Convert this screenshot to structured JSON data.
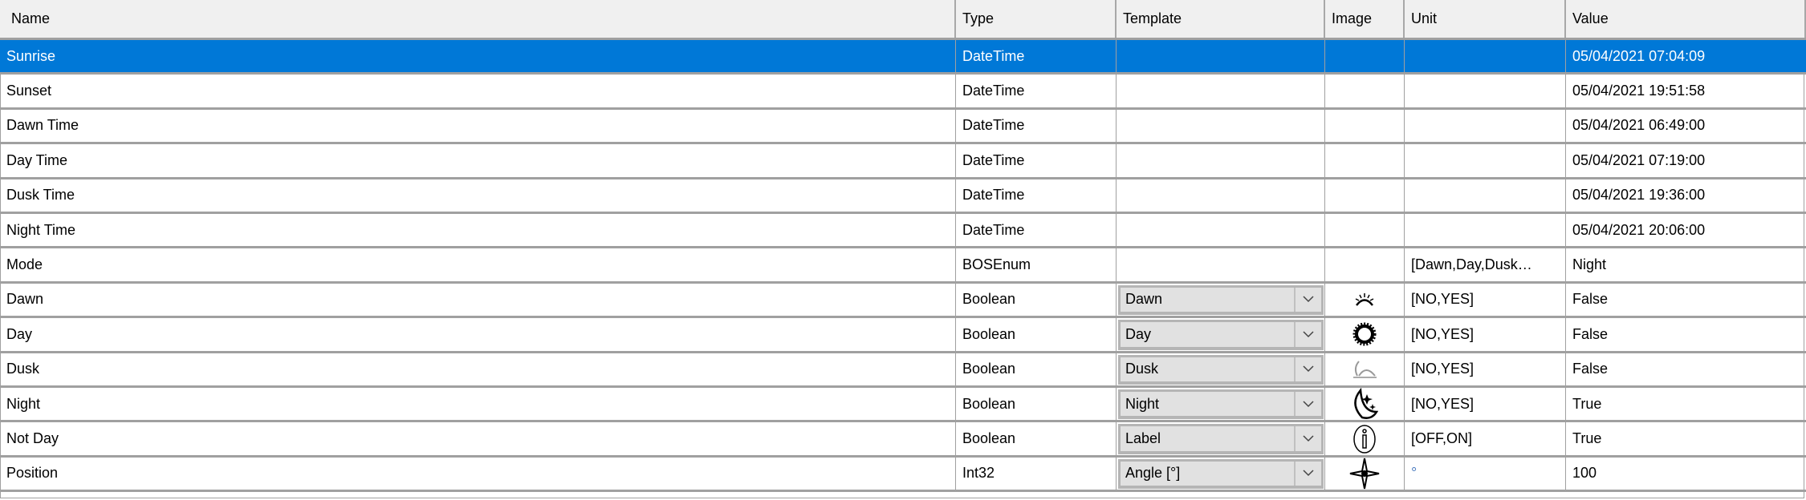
{
  "columns": [
    "Name",
    "Type",
    "Template",
    "Image",
    "Unit",
    "Value"
  ],
  "colors": {
    "selection": "#0078d7",
    "header_bg": "#f0f0f0",
    "grid": "#a0a0a0",
    "dropdown_bg": "#e1e1e1"
  },
  "rows": [
    {
      "name": "Sunrise",
      "type": "DateTime",
      "template": "",
      "image": "",
      "unit": "",
      "value": "05/04/2021 07:04:09",
      "selected": true
    },
    {
      "name": "Sunset",
      "type": "DateTime",
      "template": "",
      "image": "",
      "unit": "",
      "value": "05/04/2021 19:51:58"
    },
    {
      "name": "Dawn Time",
      "type": "DateTime",
      "template": "",
      "image": "",
      "unit": "",
      "value": "05/04/2021 06:49:00"
    },
    {
      "name": "Day Time",
      "type": "DateTime",
      "template": "",
      "image": "",
      "unit": "",
      "value": "05/04/2021 07:19:00"
    },
    {
      "name": "Dusk Time",
      "type": "DateTime",
      "template": "",
      "image": "",
      "unit": "",
      "value": "05/04/2021 19:36:00"
    },
    {
      "name": "Night Time",
      "type": "DateTime",
      "template": "",
      "image": "",
      "unit": "",
      "value": "05/04/2021 20:06:00"
    },
    {
      "name": "Mode",
      "type": "BOSEnum",
      "template": "",
      "image": "",
      "unit": "[Dawn,Day,Dusk…",
      "value": "Night"
    },
    {
      "name": "Dawn",
      "type": "Boolean",
      "template": "Dawn",
      "image": "dawn-icon",
      "unit": "[NO,YES]",
      "value": "False"
    },
    {
      "name": "Day",
      "type": "Boolean",
      "template": "Day",
      "image": "sun-icon",
      "unit": "[NO,YES]",
      "value": "False"
    },
    {
      "name": "Dusk",
      "type": "Boolean",
      "template": "Dusk",
      "image": "dusk-icon",
      "unit": "[NO,YES]",
      "value": "False"
    },
    {
      "name": "Night",
      "type": "Boolean",
      "template": "Night",
      "image": "moon-stars-icon",
      "unit": "[NO,YES]",
      "value": "True"
    },
    {
      "name": "Not Day",
      "type": "Boolean",
      "template": "Label",
      "image": "info-icon",
      "unit": "[OFF,ON]",
      "value": "True"
    },
    {
      "name": "Position",
      "type": "Int32",
      "template": "Angle [°]",
      "image": "compass-star-icon",
      "unit": "°",
      "value": "100"
    }
  ]
}
